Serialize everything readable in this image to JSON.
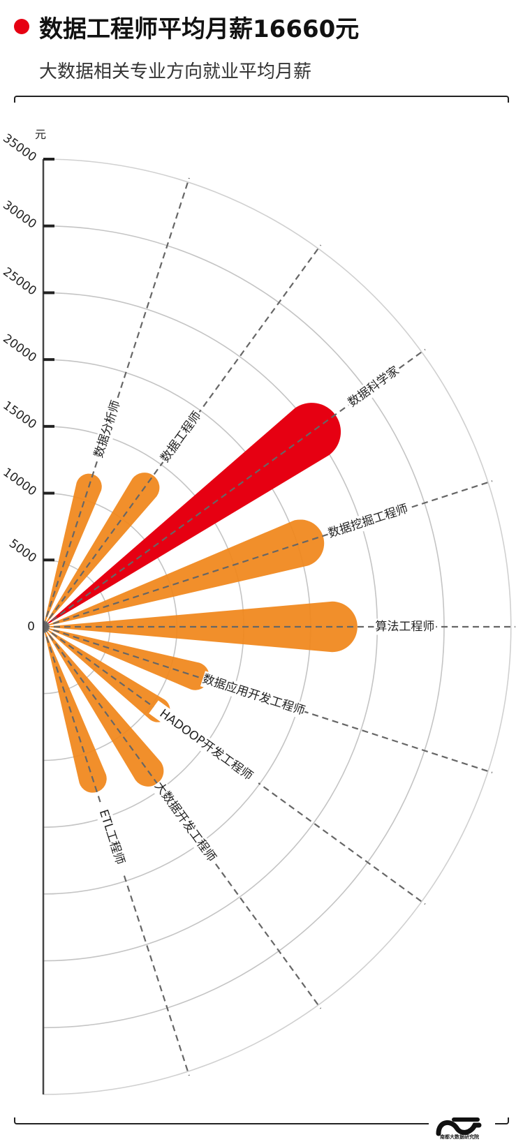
{
  "header": {
    "title": "数据工程师平均月薪16660元",
    "subtitle": "大数据相关专业方向就业平均月薪",
    "accent_color": "#e60012"
  },
  "chart_data": {
    "type": "polar-bar",
    "title": "数据工程师平均月薪16660元",
    "subtitle": "大数据相关专业方向就业平均月薪",
    "unit": "元",
    "rlim": [
      0,
      35000
    ],
    "r_ticks": [
      "0",
      "5000",
      "10000",
      "15000",
      "20000",
      "25000",
      "30000",
      "35000"
    ],
    "grid": true,
    "categories": [
      "数据分析师",
      "数据工程师",
      "数据科学家",
      "数据挖掘工程师",
      "算法工程师",
      "数据应用开发工程师",
      "HADOOP开发工程师",
      "大数据开发工程师",
      "ETL工程师"
    ],
    "values": [
      12000,
      14000,
      27000,
      22000,
      23500,
      13000,
      11500,
      14500,
      13000
    ],
    "highlight": "数据科学家",
    "colors": {
      "default": "#f08519",
      "highlight": "#e60012",
      "overlap": "#e8470d"
    }
  },
  "footer": {
    "logo_icon": "ndu-logo-icon",
    "logo_text": "南都大数据研究院"
  }
}
